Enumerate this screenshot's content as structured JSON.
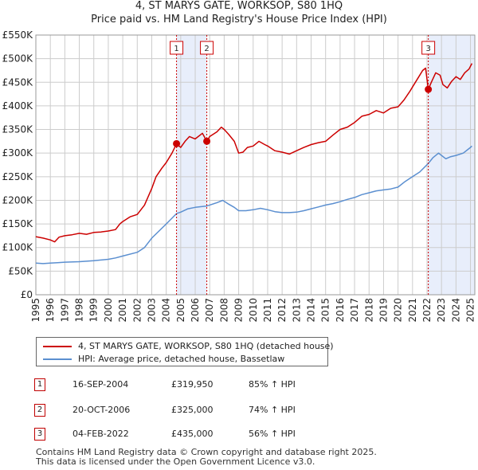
{
  "chart_data": {
    "type": "line",
    "title": "4, ST MARYS GATE, WORKSOP, S80 1HQ",
    "subtitle": "Price paid vs. HM Land Registry's House Price Index (HPI)",
    "xlim": [
      1995,
      2025.3
    ],
    "ylim": [
      0,
      550000
    ],
    "x_ticks": [
      "1995",
      "1996",
      "1997",
      "1998",
      "1999",
      "2000",
      "2001",
      "2002",
      "2003",
      "2004",
      "2005",
      "2006",
      "2007",
      "2008",
      "2009",
      "2010",
      "2011",
      "2012",
      "2013",
      "2014",
      "2015",
      "2016",
      "2017",
      "2018",
      "2019",
      "2020",
      "2021",
      "2022",
      "2023",
      "2024",
      "2025"
    ],
    "y_ticks": [
      {
        "value": 0,
        "label": "£0"
      },
      {
        "value": 50000,
        "label": "£50K"
      },
      {
        "value": 100000,
        "label": "£100K"
      },
      {
        "value": 150000,
        "label": "£150K"
      },
      {
        "value": 200000,
        "label": "£200K"
      },
      {
        "value": 250000,
        "label": "£250K"
      },
      {
        "value": 300000,
        "label": "£300K"
      },
      {
        "value": 350000,
        "label": "£350K"
      },
      {
        "value": 400000,
        "label": "£400K"
      },
      {
        "value": 450000,
        "label": "£450K"
      },
      {
        "value": 500000,
        "label": "£500K"
      },
      {
        "value": 550000,
        "label": "£550K"
      }
    ],
    "shaded_ranges": [
      [
        2004.71,
        2006.8
      ],
      [
        2022.09,
        2025.3
      ]
    ],
    "series": [
      {
        "name": "4, ST MARYS GATE, WORKSOP, S80 1HQ (detached house)",
        "color": "#cc0000",
        "points": [
          [
            1995.0,
            123000
          ],
          [
            1995.5,
            120000
          ],
          [
            1996.0,
            116000
          ],
          [
            1996.3,
            112000
          ],
          [
            1996.6,
            122000
          ],
          [
            1997.0,
            125000
          ],
          [
            1997.5,
            127000
          ],
          [
            1998.0,
            130000
          ],
          [
            1998.5,
            128000
          ],
          [
            1999.0,
            132000
          ],
          [
            1999.5,
            133000
          ],
          [
            2000.0,
            135000
          ],
          [
            2000.5,
            138000
          ],
          [
            2000.8,
            150000
          ],
          [
            2001.0,
            155000
          ],
          [
            2001.5,
            165000
          ],
          [
            2002.0,
            170000
          ],
          [
            2002.5,
            190000
          ],
          [
            2003.0,
            225000
          ],
          [
            2003.3,
            250000
          ],
          [
            2003.7,
            268000
          ],
          [
            2004.0,
            280000
          ],
          [
            2004.4,
            300000
          ],
          [
            2004.71,
            319950
          ],
          [
            2005.0,
            312000
          ],
          [
            2005.3,
            325000
          ],
          [
            2005.6,
            335000
          ],
          [
            2006.0,
            330000
          ],
          [
            2006.5,
            342000
          ],
          [
            2006.8,
            325000
          ],
          [
            2007.0,
            335000
          ],
          [
            2007.5,
            345000
          ],
          [
            2007.8,
            355000
          ],
          [
            2008.0,
            350000
          ],
          [
            2008.3,
            340000
          ],
          [
            2008.7,
            325000
          ],
          [
            2009.0,
            300000
          ],
          [
            2009.3,
            302000
          ],
          [
            2009.6,
            312000
          ],
          [
            2010.0,
            315000
          ],
          [
            2010.4,
            325000
          ],
          [
            2010.8,
            318000
          ],
          [
            2011.0,
            315000
          ],
          [
            2011.5,
            305000
          ],
          [
            2012.0,
            302000
          ],
          [
            2012.5,
            298000
          ],
          [
            2013.0,
            305000
          ],
          [
            2013.5,
            312000
          ],
          [
            2014.0,
            318000
          ],
          [
            2014.5,
            322000
          ],
          [
            2015.0,
            325000
          ],
          [
            2015.5,
            338000
          ],
          [
            2016.0,
            350000
          ],
          [
            2016.5,
            355000
          ],
          [
            2017.0,
            365000
          ],
          [
            2017.5,
            378000
          ],
          [
            2018.0,
            382000
          ],
          [
            2018.5,
            390000
          ],
          [
            2019.0,
            385000
          ],
          [
            2019.5,
            395000
          ],
          [
            2020.0,
            398000
          ],
          [
            2020.4,
            412000
          ],
          [
            2020.8,
            430000
          ],
          [
            2021.0,
            440000
          ],
          [
            2021.4,
            460000
          ],
          [
            2021.7,
            475000
          ],
          [
            2021.9,
            480000
          ],
          [
            2022.09,
            435000
          ],
          [
            2022.3,
            450000
          ],
          [
            2022.6,
            470000
          ],
          [
            2022.9,
            465000
          ],
          [
            2023.1,
            445000
          ],
          [
            2023.4,
            438000
          ],
          [
            2023.7,
            452000
          ],
          [
            2024.0,
            462000
          ],
          [
            2024.3,
            456000
          ],
          [
            2024.6,
            470000
          ],
          [
            2024.9,
            478000
          ],
          [
            2025.1,
            490000
          ]
        ]
      },
      {
        "name": "HPI: Average price, detached house, Bassetlaw",
        "color": "#5b8fd0",
        "points": [
          [
            1995.0,
            67000
          ],
          [
            1995.5,
            66000
          ],
          [
            1996.0,
            67000
          ],
          [
            1996.5,
            68000
          ],
          [
            1997.0,
            69000
          ],
          [
            1998.0,
            70000
          ],
          [
            1999.0,
            72000
          ],
          [
            2000.0,
            75000
          ],
          [
            2000.5,
            78000
          ],
          [
            2001.0,
            82000
          ],
          [
            2002.0,
            90000
          ],
          [
            2002.5,
            100000
          ],
          [
            2003.0,
            120000
          ],
          [
            2003.5,
            135000
          ],
          [
            2004.0,
            150000
          ],
          [
            2004.71,
            172000
          ],
          [
            2005.0,
            175000
          ],
          [
            2005.5,
            182000
          ],
          [
            2006.0,
            185000
          ],
          [
            2006.8,
            188000
          ],
          [
            2007.0,
            190000
          ],
          [
            2007.5,
            195000
          ],
          [
            2007.9,
            200000
          ],
          [
            2008.3,
            192000
          ],
          [
            2008.7,
            185000
          ],
          [
            2009.0,
            178000
          ],
          [
            2009.5,
            178000
          ],
          [
            2010.0,
            180000
          ],
          [
            2010.5,
            183000
          ],
          [
            2011.0,
            180000
          ],
          [
            2011.5,
            176000
          ],
          [
            2012.0,
            174000
          ],
          [
            2012.5,
            174000
          ],
          [
            2013.0,
            175000
          ],
          [
            2013.5,
            178000
          ],
          [
            2014.0,
            182000
          ],
          [
            2014.5,
            186000
          ],
          [
            2015.0,
            190000
          ],
          [
            2015.5,
            193000
          ],
          [
            2016.0,
            197000
          ],
          [
            2016.5,
            202000
          ],
          [
            2017.0,
            206000
          ],
          [
            2017.5,
            212000
          ],
          [
            2018.0,
            216000
          ],
          [
            2018.5,
            220000
          ],
          [
            2019.0,
            222000
          ],
          [
            2019.5,
            224000
          ],
          [
            2020.0,
            228000
          ],
          [
            2020.5,
            240000
          ],
          [
            2021.0,
            250000
          ],
          [
            2021.5,
            260000
          ],
          [
            2022.09,
            278000
          ],
          [
            2022.4,
            290000
          ],
          [
            2022.8,
            300000
          ],
          [
            2023.0,
            295000
          ],
          [
            2023.3,
            288000
          ],
          [
            2023.6,
            292000
          ],
          [
            2024.0,
            295000
          ],
          [
            2024.5,
            300000
          ],
          [
            2025.0,
            312000
          ],
          [
            2025.1,
            315000
          ]
        ]
      }
    ],
    "sales": [
      {
        "label": "1",
        "x": 2004.71,
        "y": 319950
      },
      {
        "label": "2",
        "x": 2006.8,
        "y": 325000
      },
      {
        "label": "3",
        "x": 2022.09,
        "y": 435000
      }
    ]
  },
  "legend": {
    "property_label": "4, ST MARYS GATE, WORKSOP, S80 1HQ (detached house)",
    "hpi_label": "HPI: Average price, detached house, Bassetlaw"
  },
  "transactions": [
    {
      "num": "1",
      "date": "16-SEP-2004",
      "price": "£319,950",
      "change": "85% ↑ HPI"
    },
    {
      "num": "2",
      "date": "20-OCT-2006",
      "price": "£325,000",
      "change": "74% ↑ HPI"
    },
    {
      "num": "3",
      "date": "04-FEB-2022",
      "price": "£435,000",
      "change": "56% ↑ HPI"
    }
  ],
  "footer": {
    "line1": "Contains HM Land Registry data © Crown copyright and database right 2025.",
    "line2": "This data is licensed under the Open Government Licence v3.0."
  },
  "colors": {
    "property": "#cc0000",
    "hpi": "#5b8fd0",
    "shade": "#e8eefb",
    "grid": "#cccccc"
  }
}
